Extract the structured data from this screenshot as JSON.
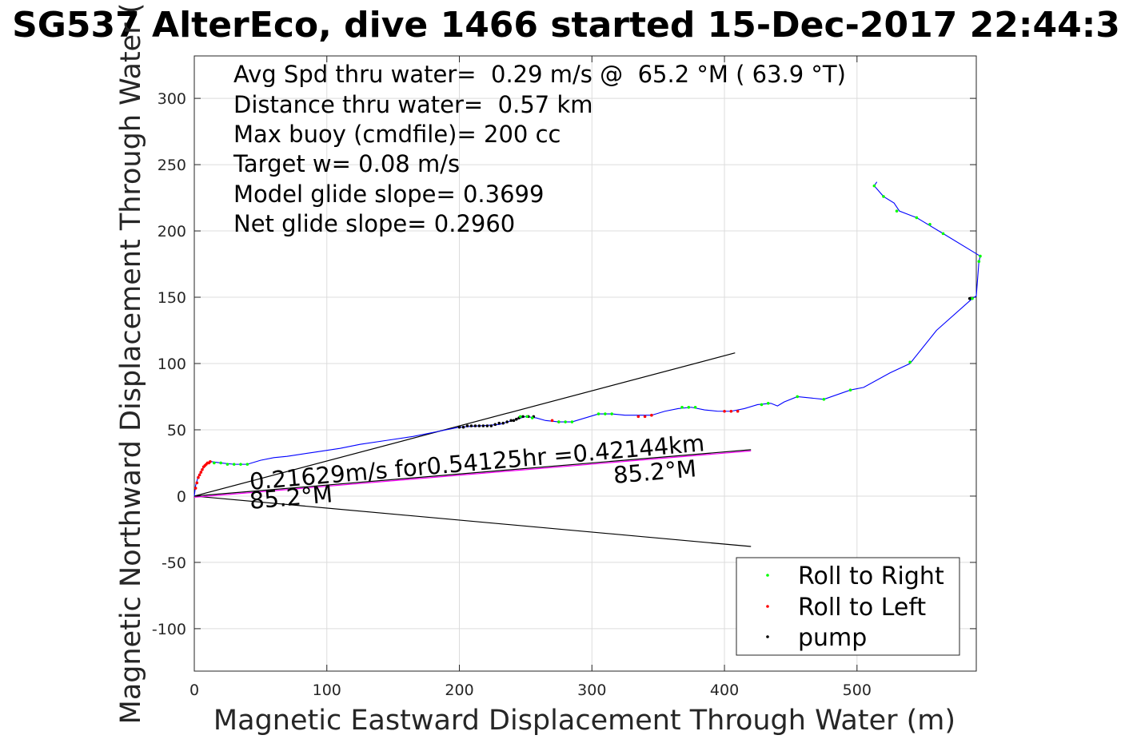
{
  "title": "SG537 AlterEco, dive 1466 started 15-Dec-2017 22:44:3",
  "stats": [
    "Avg Spd thru water=  0.29 m/s @  65.2 °M ( 63.9 °T)",
    "Distance thru water=  0.57 km",
    "Max buoy (cmdfile)= 200 cc",
    "Target w= 0.08 m/s",
    "Model glide slope= 0.3699",
    "Net glide slope= 0.2960"
  ],
  "annotations": {
    "current": "0.21629m/s for0.54125hr =0.42144km",
    "heading_end": "85.2°M",
    "heading_origin": "85.2°M"
  },
  "legend": [
    {
      "label": "Roll to Right",
      "color": "#00ff00"
    },
    {
      "label": "Roll to Left",
      "color": "#ff0000"
    },
    {
      "label": "pump",
      "color": "#000000"
    }
  ],
  "chart_data": {
    "type": "line",
    "xlabel": "Magnetic Eastward Displacement Through Water (m)",
    "ylabel": "Magnetic Northward Displacement Through Water (",
    "xlim": [
      0,
      590
    ],
    "ylim": [
      -132,
      332
    ],
    "xticks": [
      0,
      100,
      200,
      300,
      400,
      500
    ],
    "yticks": [
      300,
      250,
      200,
      150,
      100,
      50,
      0,
      -50,
      -100
    ],
    "grid": true,
    "legend_position": "bottom-right",
    "track": {
      "color": "#0000ff",
      "points": [
        [
          0,
          0
        ],
        [
          1,
          8
        ],
        [
          3,
          15
        ],
        [
          6,
          20
        ],
        [
          9,
          24
        ],
        [
          13,
          26
        ],
        [
          20,
          25
        ],
        [
          30,
          24
        ],
        [
          40,
          24
        ],
        [
          50,
          27
        ],
        [
          60,
          29
        ],
        [
          70,
          30
        ],
        [
          90,
          33
        ],
        [
          110,
          36
        ],
        [
          125,
          39
        ],
        [
          145,
          42
        ],
        [
          165,
          45
        ],
        [
          185,
          49
        ],
        [
          200,
          52
        ],
        [
          215,
          53
        ],
        [
          230,
          54
        ],
        [
          240,
          57
        ],
        [
          250,
          60
        ],
        [
          258,
          59
        ],
        [
          265,
          57
        ],
        [
          275,
          56
        ],
        [
          285,
          56
        ],
        [
          295,
          59
        ],
        [
          305,
          62
        ],
        [
          315,
          62
        ],
        [
          325,
          61
        ],
        [
          335,
          61
        ],
        [
          345,
          61
        ],
        [
          355,
          64
        ],
        [
          365,
          66
        ],
        [
          375,
          67
        ],
        [
          385,
          65
        ],
        [
          395,
          64
        ],
        [
          405,
          64
        ],
        [
          415,
          66
        ],
        [
          425,
          69
        ],
        [
          435,
          70
        ],
        [
          440,
          68
        ],
        [
          445,
          71
        ],
        [
          455,
          75
        ],
        [
          475,
          73
        ],
        [
          495,
          80
        ],
        [
          505,
          82
        ],
        [
          525,
          93
        ],
        [
          540,
          100
        ],
        [
          560,
          125
        ],
        [
          587,
          149
        ],
        [
          590,
          151
        ],
        [
          592,
          177
        ],
        [
          593,
          181
        ],
        [
          565,
          198
        ],
        [
          545,
          210
        ],
        [
          532,
          215
        ],
        [
          528,
          221
        ],
        [
          520,
          226
        ],
        [
          513,
          234
        ],
        [
          515,
          237
        ]
      ]
    },
    "roll_right": [
      [
        246,
        60
      ],
      [
        251,
        60
      ],
      [
        255,
        59
      ],
      [
        275,
        56
      ],
      [
        280,
        56
      ],
      [
        285,
        56
      ],
      [
        305,
        62
      ],
      [
        310,
        62
      ],
      [
        315,
        62
      ],
      [
        368,
        67
      ],
      [
        373,
        67
      ],
      [
        378,
        67
      ],
      [
        428,
        69
      ],
      [
        433,
        70
      ],
      [
        455,
        75
      ],
      [
        475,
        73
      ],
      [
        495,
        80
      ],
      [
        540,
        101
      ],
      [
        587,
        149
      ],
      [
        592,
        177
      ],
      [
        593,
        181
      ],
      [
        565,
        198
      ],
      [
        555,
        205
      ],
      [
        545,
        210
      ],
      [
        530,
        215
      ],
      [
        520,
        226
      ],
      [
        513,
        234
      ],
      [
        15,
        25
      ],
      [
        20,
        25
      ],
      [
        25,
        24
      ],
      [
        30,
        24
      ],
      [
        35,
        24
      ],
      [
        40,
        24
      ]
    ],
    "roll_left": [
      [
        1,
        6
      ],
      [
        2,
        10
      ],
      [
        3,
        14
      ],
      [
        4,
        16
      ],
      [
        5,
        18
      ],
      [
        6,
        20
      ],
      [
        7,
        22
      ],
      [
        8,
        23
      ],
      [
        9,
        24
      ],
      [
        10,
        25
      ],
      [
        11,
        25
      ],
      [
        12,
        26
      ],
      [
        270,
        57
      ],
      [
        275,
        56
      ],
      [
        335,
        60
      ],
      [
        340,
        60
      ],
      [
        345,
        61
      ],
      [
        400,
        64
      ],
      [
        405,
        64
      ],
      [
        410,
        64
      ]
    ],
    "pump": [
      [
        200,
        52
      ],
      [
        203,
        52
      ],
      [
        206,
        53
      ],
      [
        209,
        53
      ],
      [
        212,
        53
      ],
      [
        215,
        53
      ],
      [
        218,
        53
      ],
      [
        221,
        53
      ],
      [
        224,
        53
      ],
      [
        227,
        54
      ],
      [
        230,
        55
      ],
      [
        233,
        55
      ],
      [
        236,
        56
      ],
      [
        239,
        57
      ],
      [
        241,
        57
      ],
      [
        243,
        58
      ],
      [
        245,
        59
      ],
      [
        248,
        60
      ],
      [
        252,
        60
      ],
      [
        256,
        60
      ],
      [
        585,
        149
      ]
    ],
    "current_line": {
      "from": [
        0,
        0
      ],
      "to": [
        420,
        35
      ],
      "color": "#ff00ff"
    },
    "envelope_upper": {
      "from": [
        0,
        0
      ],
      "to": [
        408,
        108
      ]
    },
    "envelope_lower": {
      "from": [
        0,
        0
      ],
      "to": [
        420,
        -38
      ]
    }
  }
}
